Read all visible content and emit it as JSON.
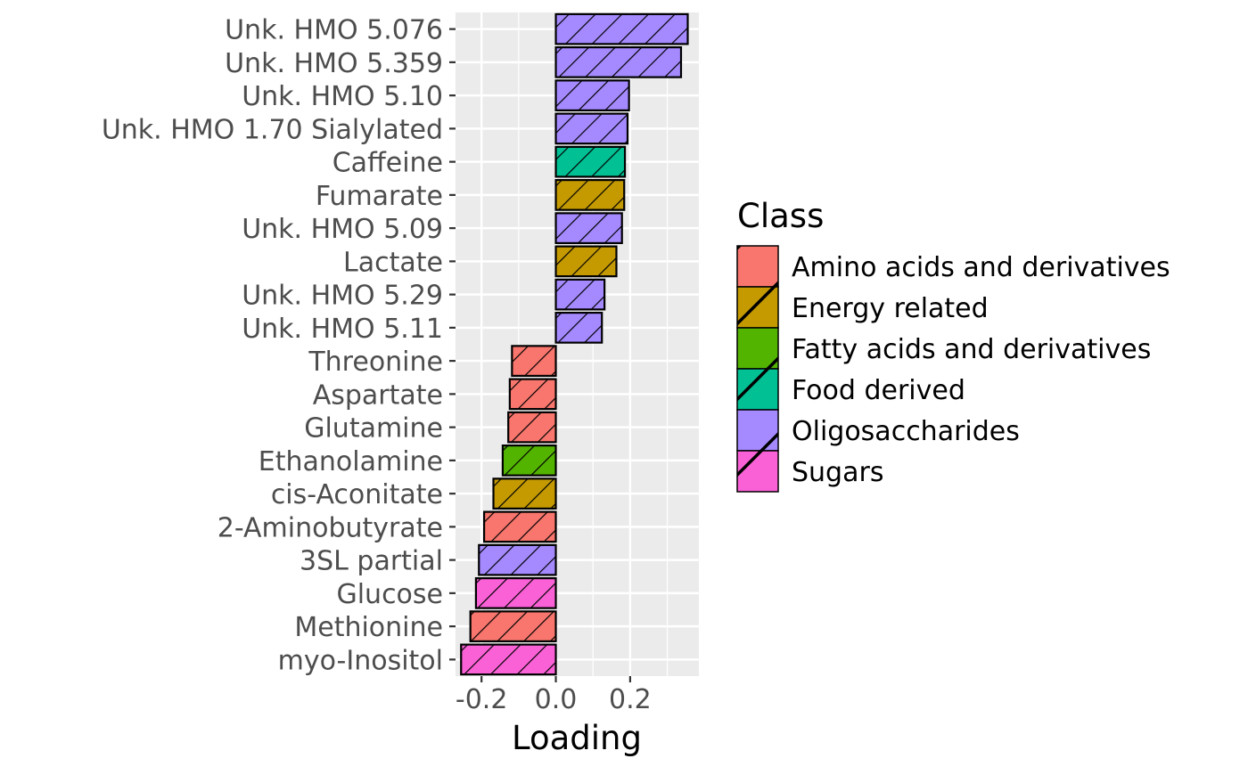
{
  "chart_data": {
    "type": "bar",
    "orientation": "horizontal",
    "xlabel": "Loading",
    "ylabel": "",
    "xlim": [
      -0.27,
      0.385
    ],
    "xticks": [
      -0.2,
      0.0,
      0.2
    ],
    "xtick_labels": [
      "-0.2",
      "0.0",
      "0.2"
    ],
    "grid": true,
    "bar_pattern": "diagonal-hatch",
    "legend": {
      "title": "Class",
      "position": "right",
      "entries": [
        {
          "name": "Amino acids and derivatives",
          "color": "#F8766D"
        },
        {
          "name": "Energy related",
          "color": "#C49A00"
        },
        {
          "name": "Fatty acids and derivatives",
          "color": "#53B400"
        },
        {
          "name": "Food derived",
          "color": "#00C094"
        },
        {
          "name": "Oligosaccharides",
          "color": "#A58AFF"
        },
        {
          "name": "Sugars",
          "color": "#FB61D7"
        }
      ]
    },
    "categories": [
      "Unk. HMO 5.076",
      "Unk. HMO 5.359",
      "Unk. HMO 5.10",
      "Unk. HMO 1.70 Sialylated",
      "Caffeine",
      "Fumarate",
      "Unk. HMO 5.09",
      "Lactate",
      "Unk. HMO 5.29",
      "Unk. HMO 5.11",
      "Threonine",
      "Aspartate",
      "Glutamine",
      "Ethanolamine",
      "cis-Aconitate",
      "2-Aminobutyrate",
      "3SL partial",
      "Glucose",
      "Methionine",
      "myo-Inositol"
    ],
    "values": [
      0.355,
      0.337,
      0.197,
      0.193,
      0.186,
      0.184,
      0.178,
      0.163,
      0.131,
      0.124,
      -0.118,
      -0.124,
      -0.128,
      -0.143,
      -0.168,
      -0.193,
      -0.207,
      -0.215,
      -0.23,
      -0.255
    ],
    "classes": [
      "Oligosaccharides",
      "Oligosaccharides",
      "Oligosaccharides",
      "Oligosaccharides",
      "Food derived",
      "Energy related",
      "Oligosaccharides",
      "Energy related",
      "Oligosaccharides",
      "Oligosaccharides",
      "Amino acids and derivatives",
      "Amino acids and derivatives",
      "Amino acids and derivatives",
      "Fatty acids and derivatives",
      "Energy related",
      "Amino acids and derivatives",
      "Oligosaccharides",
      "Sugars",
      "Amino acids and derivatives",
      "Sugars"
    ]
  }
}
